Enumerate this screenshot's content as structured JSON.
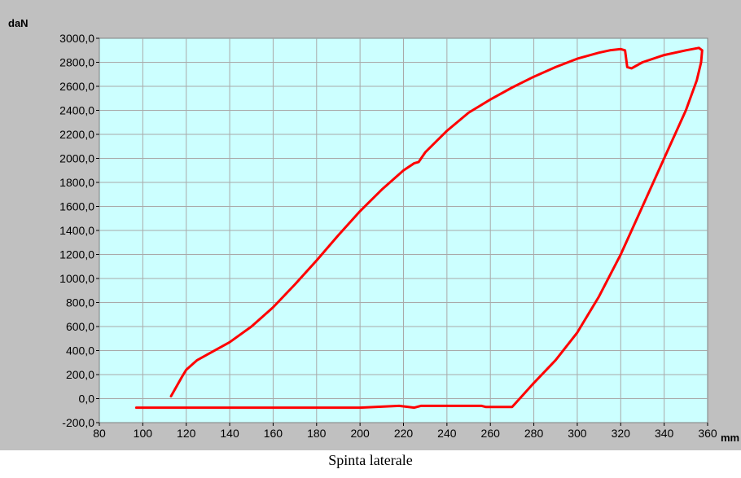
{
  "chart_data": {
    "type": "line",
    "caption": "Spinta laterale",
    "xlabel": "mm",
    "ylabel": "daN",
    "xlim": [
      80,
      360
    ],
    "ylim": [
      -200,
      3000
    ],
    "grid": true,
    "x_ticks": [
      80,
      100,
      120,
      140,
      160,
      180,
      200,
      220,
      240,
      260,
      280,
      300,
      320,
      340,
      360
    ],
    "x_tick_labels": [
      "80",
      "100",
      "120",
      "140",
      "160",
      "180",
      "200",
      "220",
      "240",
      "260",
      "280",
      "300",
      "320",
      "340",
      "360"
    ],
    "y_ticks": [
      -200,
      0,
      200,
      400,
      600,
      800,
      1000,
      1200,
      1400,
      1600,
      1800,
      2000,
      2200,
      2400,
      2600,
      2800,
      3000
    ],
    "y_tick_labels": [
      "-200,0",
      "0,0",
      "200,0",
      "400,0",
      "600,0",
      "800,0",
      "1000,0",
      "1200,0",
      "1400,0",
      "1600,0",
      "1800,0",
      "2000,0",
      "2200,0",
      "2400,0",
      "2600,0",
      "2800,0",
      "3000,0"
    ],
    "colors": {
      "plot_background": "#ccffff",
      "panel_background": "#c0c0c0",
      "grid": "#a9a9a9",
      "line": "#ff0000"
    },
    "series": [
      {
        "x": [
          113,
          118,
          120,
          125,
          130,
          140,
          150,
          160,
          170,
          180,
          190,
          200,
          210,
          220,
          225,
          227,
          230,
          240,
          250,
          260,
          270,
          280,
          290,
          300,
          310,
          315,
          320,
          322,
          323,
          325,
          330,
          340,
          350,
          356,
          357.5,
          357,
          355,
          350,
          340,
          330,
          320,
          310,
          300,
          290,
          280,
          275,
          270,
          258,
          256,
          228,
          225,
          218,
          200,
          150,
          97
        ],
        "y": [
          20,
          180,
          240,
          320,
          370,
          470,
          600,
          760,
          950,
          1150,
          1360,
          1560,
          1740,
          1900,
          1960,
          1970,
          2050,
          2230,
          2380,
          2490,
          2590,
          2680,
          2760,
          2830,
          2880,
          2900,
          2910,
          2900,
          2760,
          2750,
          2800,
          2860,
          2900,
          2920,
          2900,
          2800,
          2650,
          2400,
          2000,
          1600,
          1200,
          850,
          550,
          320,
          130,
          30,
          -70,
          -70,
          -60,
          -60,
          -75,
          -60,
          -75,
          -75,
          -75
        ]
      }
    ]
  }
}
